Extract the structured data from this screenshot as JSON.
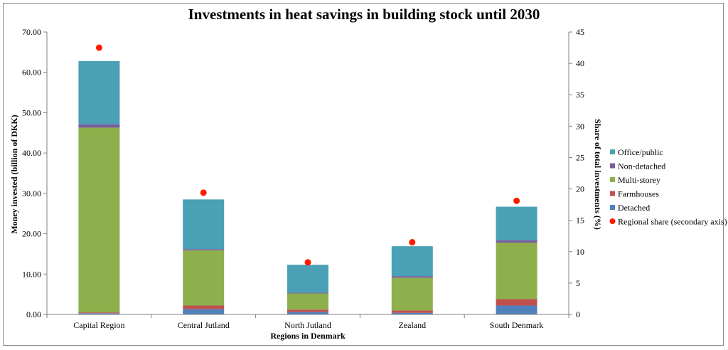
{
  "chart_data": {
    "type": "bar",
    "stacked": true,
    "title": "Investments in heat savings in building stock until 2030",
    "xlabel": "Regions in Denmark",
    "ylabel": "Money invested (billion  of DKK)",
    "y2label": "Share of total investments (%)",
    "categories": [
      "Capital Region",
      "Central Jutland",
      "North Jutland",
      "Zealand",
      "South Denmark"
    ],
    "ylim": [
      0,
      70
    ],
    "y_ticks": [
      "0.00",
      "10.00",
      "20.00",
      "30.00",
      "40.00",
      "50.00",
      "60.00",
      "70.00"
    ],
    "y2lim": [
      0,
      45
    ],
    "y2_ticks": [
      "0",
      "5",
      "10",
      "15",
      "20",
      "25",
      "30",
      "35",
      "40",
      "45"
    ],
    "series": [
      {
        "name": "Detached",
        "color": "#4f81bd",
        "values": [
          0.3,
          1.3,
          0.6,
          0.4,
          2.2
        ]
      },
      {
        "name": "Farmhouses",
        "color": "#c0504d",
        "values": [
          0.2,
          0.9,
          0.6,
          0.6,
          1.6
        ]
      },
      {
        "name": "Multi-storey",
        "color": "#8db04d",
        "values": [
          45.8,
          13.7,
          4.0,
          8.1,
          14.0
        ]
      },
      {
        "name": "Non-detached",
        "color": "#7a5ca0",
        "values": [
          0.8,
          0.3,
          0.2,
          0.4,
          0.6
        ]
      },
      {
        "name": "Office/public",
        "color": "#4aa0b5",
        "values": [
          15.7,
          12.3,
          6.9,
          7.4,
          8.3
        ]
      }
    ],
    "secondary_series": {
      "name": "Regional share (secondary axis)",
      "color": "#ff1a00",
      "values": [
        42.5,
        19.4,
        8.3,
        11.5,
        18.1
      ]
    },
    "legend": {
      "placement": "right",
      "order": [
        "Office/public",
        "Non-detached",
        "Multi-storey",
        "Farmhouses",
        "Detached",
        "Regional share (secondary axis)"
      ]
    }
  }
}
